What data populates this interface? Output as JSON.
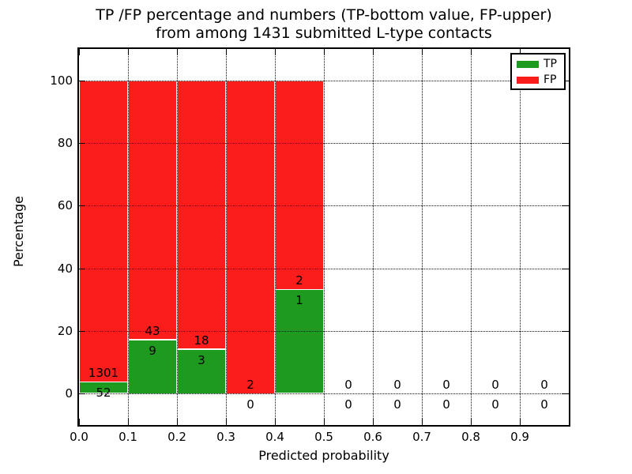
{
  "chart_data": {
    "type": "bar",
    "stacked": true,
    "title_line1": "TP /FP percentage and numbers (TP-bottom value, FP-upper)",
    "title_line2": "from among 1431 submitted L-type contacts",
    "xlabel": "Predicted probability",
    "ylabel": "Percentage",
    "xlim": [
      0.0,
      1.0
    ],
    "ylim": [
      -10,
      110
    ],
    "grid": "dotted",
    "legend_position": "upper right",
    "colors": {
      "tp": "#1e9b1e",
      "fp": "#fb1c1c",
      "bar_edge": "#ffffff"
    },
    "xticks": [
      "0.0",
      "0.1",
      "0.2",
      "0.3",
      "0.4",
      "0.5",
      "0.6",
      "0.7",
      "0.8",
      "0.9"
    ],
    "yticks": [
      "0",
      "20",
      "40",
      "60",
      "80",
      "100"
    ],
    "ytick_values": [
      0,
      20,
      40,
      60,
      80,
      100
    ],
    "legend": [
      {
        "label": "TP",
        "color": "#1e9b1e"
      },
      {
        "label": "FP",
        "color": "#fb1c1c"
      }
    ],
    "bins": [
      {
        "range": [
          0.0,
          0.1
        ],
        "tp": 52,
        "fp": 1301,
        "tp_pct": 3.8
      },
      {
        "range": [
          0.1,
          0.2
        ],
        "tp": 9,
        "fp": 43,
        "tp_pct": 17.3
      },
      {
        "range": [
          0.2,
          0.3
        ],
        "tp": 3,
        "fp": 18,
        "tp_pct": 14.3
      },
      {
        "range": [
          0.3,
          0.4
        ],
        "tp": 0,
        "fp": 2,
        "tp_pct": 0
      },
      {
        "range": [
          0.4,
          0.5
        ],
        "tp": 1,
        "fp": 2,
        "tp_pct": 33.3
      },
      {
        "range": [
          0.5,
          0.6
        ],
        "tp": 0,
        "fp": 0,
        "tp_pct": 0
      },
      {
        "range": [
          0.6,
          0.7
        ],
        "tp": 0,
        "fp": 0,
        "tp_pct": 0
      },
      {
        "range": [
          0.7,
          0.8
        ],
        "tp": 0,
        "fp": 0,
        "tp_pct": 0
      },
      {
        "range": [
          0.8,
          0.9
        ],
        "tp": 0,
        "fp": 0,
        "tp_pct": 0
      },
      {
        "range": [
          0.9,
          1.0
        ],
        "tp": 0,
        "fp": 0,
        "tp_pct": 0
      }
    ]
  }
}
